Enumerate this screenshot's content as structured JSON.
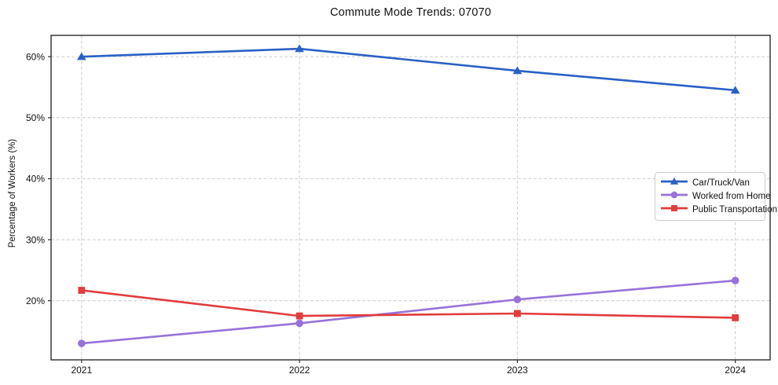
{
  "chart_data": {
    "type": "line",
    "title": "Commute Mode Trends: 07070",
    "xlabel": "",
    "ylabel": "Percentage of Workers (%)",
    "categories": [
      "2021",
      "2022",
      "2023",
      "2024"
    ],
    "series": [
      {
        "name": "Car/Truck/Van",
        "marker": "triangle",
        "color": "#2a60c5",
        "values": [
          60.0,
          61.3,
          57.7,
          54.5
        ]
      },
      {
        "name": "Worked from Home",
        "marker": "circle",
        "color": "#9673d8",
        "values": [
          13.0,
          16.3,
          20.2,
          23.3
        ]
      },
      {
        "name": "Public Transportation",
        "marker": "square",
        "color": "#e03c3c",
        "values": [
          21.7,
          17.5,
          17.9,
          17.2
        ]
      }
    ],
    "ytick_values": [
      20,
      30,
      40,
      50,
      60
    ],
    "ytick_labels": [
      "20%",
      "30%",
      "40%",
      "50%",
      "60%"
    ],
    "ylim": [
      10.3,
      63.5
    ],
    "xlim": [
      2020.86,
      2024.16
    ],
    "grid": true,
    "grid_style": "dashed",
    "legend_position": "center-right"
  },
  "colors": {
    "grid": "#cccccc",
    "spine": "#2b2b2b",
    "text": "#111111",
    "background": "#ffffff",
    "legend_border": "#cccccc"
  }
}
